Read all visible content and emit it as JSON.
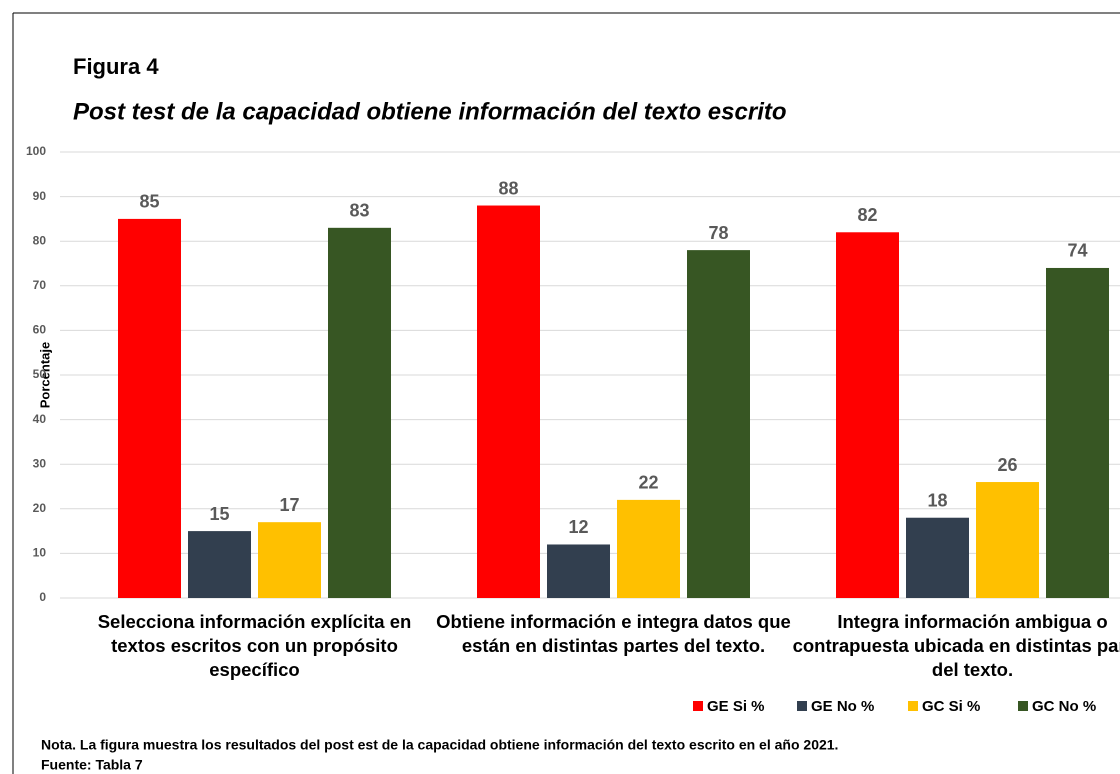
{
  "chart_data": {
    "type": "bar",
    "figure_label": "Figura 4",
    "title": "Post test de la capacidad obtiene información del texto escrito",
    "y_label": "Porcentaje",
    "categories": [
      "Selecciona información explícita en textos escritos con un propósito específico",
      "Obtiene información e integra datos que están en distintas partes del texto.",
      "Integra información ambigua o contrapuesta ubicada en distintas partes del texto."
    ],
    "series": [
      {
        "name": "GE Si %",
        "color": "#ff0000",
        "values": [
          85,
          88,
          82
        ]
      },
      {
        "name": "GE No %",
        "color": "#323f4f",
        "values": [
          15,
          12,
          18
        ]
      },
      {
        "name": "GC Si %",
        "color": "#ffc000",
        "values": [
          17,
          22,
          26
        ]
      },
      {
        "name": "GC No %",
        "color": "#375623",
        "values": [
          83,
          78,
          74
        ]
      }
    ],
    "ylim": [
      0,
      100
    ],
    "yticks": [
      0,
      10,
      20,
      30,
      40,
      50,
      60,
      70,
      80,
      90,
      100
    ],
    "grid": true,
    "legend": "bottom-right",
    "note": "Nota. La figura muestra los resultados del post est de la capacidad obtiene información del texto escrito en el año 2021.",
    "source": "Fuente: Tabla 7"
  }
}
